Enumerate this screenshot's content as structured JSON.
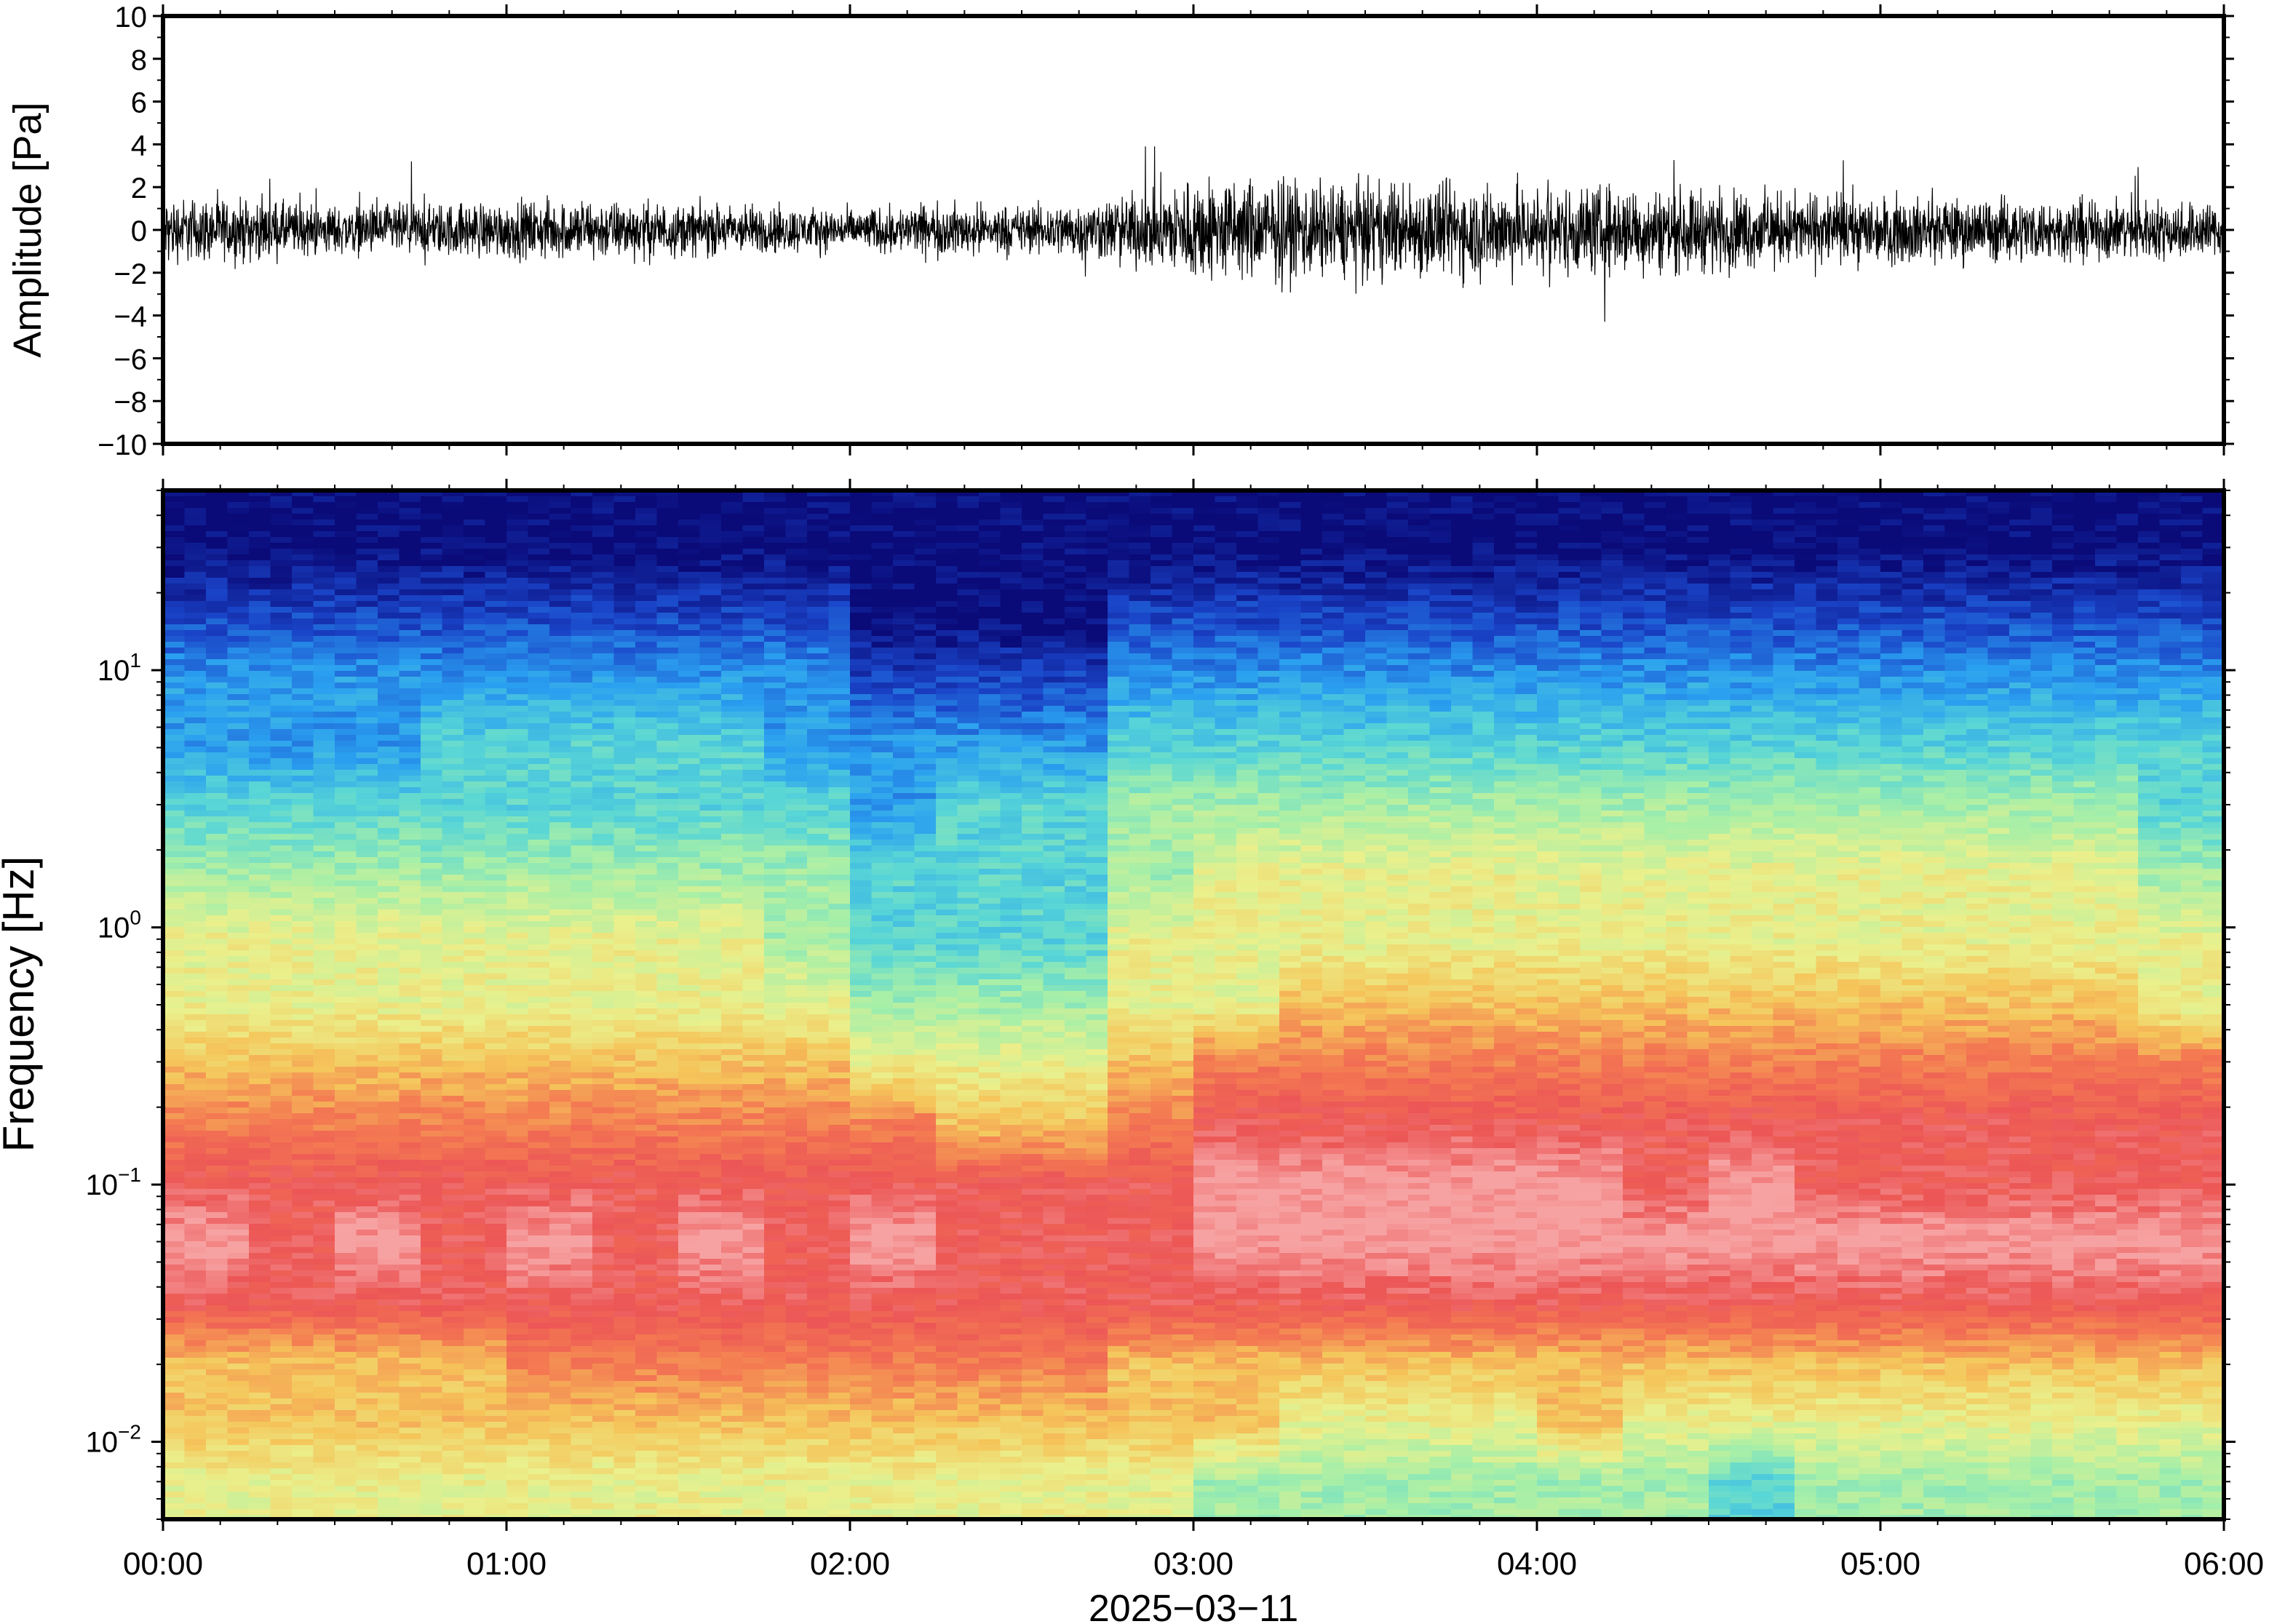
{
  "chart_data": [
    {
      "type": "line",
      "panel": "waveform",
      "ylabel": "Amplitude [Pa]",
      "ylim": [
        -10,
        10
      ],
      "yticks": [
        10,
        8,
        6,
        4,
        2,
        0,
        -2,
        -4,
        -6,
        -8,
        -10
      ],
      "ytick_labels": [
        "10",
        "8",
        "6",
        "4",
        "2",
        "0",
        "−2",
        "−4",
        "−6",
        "−8",
        "−10"
      ],
      "xlim": [
        "00:00",
        "06:00"
      ],
      "series": [
        {
          "color": "#000000",
          "x_hours": [
            0,
            0.25,
            0.5,
            0.75,
            1,
            1.25,
            1.5,
            1.75,
            2,
            2.25,
            2.5,
            2.75,
            3,
            3.25,
            3.5,
            3.75,
            4,
            4.25,
            4.5,
            4.75,
            5,
            5.25,
            5.5,
            5.75,
            6
          ],
          "envelope_pa": [
            1.6,
            1.5,
            1.2,
            1.3,
            1.4,
            1.5,
            1.3,
            1.2,
            1.0,
            1.3,
            1.2,
            1.5,
            2.6,
            2.5,
            2.3,
            2.4,
            2.2,
            2.2,
            2.0,
            1.8,
            1.7,
            1.6,
            1.5,
            1.5,
            1.4
          ],
          "peak_max_pa": 3.9,
          "peak_min_pa": -4.4
        }
      ]
    },
    {
      "type": "heatmap",
      "panel": "spectrogram",
      "ylabel": "Frequency [Hz]",
      "xlabel": "2025−03−11",
      "y_scale": "log",
      "ylim_hz": [
        0.005,
        50
      ],
      "ytick_values_hz": [
        10,
        1,
        0.1,
        0.01
      ],
      "ytick_labels": [
        {
          "base": "10",
          "exp": "1"
        },
        {
          "base": "10",
          "exp": "0"
        },
        {
          "base": "10",
          "exp": "−1"
        },
        {
          "base": "10",
          "exp": "−2"
        }
      ],
      "x_tick_labels": [
        "00:00",
        "01:00",
        "02:00",
        "03:00",
        "04:00",
        "05:00",
        "06:00"
      ],
      "colormap": "rainbow",
      "colormap_stops": [
        "#0a0a78",
        "#1a44c8",
        "#2a9ff0",
        "#58d6d6",
        "#a6efa8",
        "#eaf08c",
        "#f5c55a",
        "#f47a52",
        "#ec5656",
        "#f7a2a2"
      ],
      "time_columns_hours": [
        0,
        0.25,
        0.5,
        0.75,
        1,
        1.25,
        1.5,
        1.75,
        2,
        2.25,
        2.5,
        2.75,
        3,
        3.25,
        3.5,
        3.75,
        4,
        4.25,
        4.5,
        4.75,
        5,
        5.25,
        5.5,
        5.75
      ],
      "frequency_rows_hz": [
        0.007,
        0.012,
        0.02,
        0.035,
        0.06,
        0.1,
        0.17,
        0.3,
        0.5,
        0.9,
        1.6,
        3,
        5,
        9,
        16,
        30
      ],
      "level_index_by_column": [
        [
          5,
          5,
          5,
          5,
          5,
          5,
          5,
          5,
          5,
          5,
          5,
          5,
          4,
          4,
          4,
          4,
          4,
          4,
          3,
          4,
          4,
          4,
          4,
          4
        ],
        [
          6,
          6,
          6,
          6,
          6,
          6,
          6,
          6,
          6,
          6,
          6,
          6,
          6,
          5,
          5,
          5,
          6,
          5,
          5,
          5,
          5,
          5,
          5,
          5
        ],
        [
          6,
          6,
          6,
          6,
          7,
          7,
          7,
          7,
          7,
          7,
          7,
          6,
          6,
          6,
          6,
          6,
          6,
          6,
          6,
          6,
          6,
          6,
          6,
          6
        ],
        [
          8,
          8,
          8,
          8,
          8,
          8,
          8,
          8,
          8,
          8,
          8,
          8,
          8,
          8,
          8,
          8,
          8,
          8,
          8,
          8,
          8,
          8,
          8,
          8
        ],
        [
          9,
          8,
          9,
          8,
          9,
          8,
          9,
          8,
          9,
          8,
          8,
          8,
          9,
          9,
          9,
          9,
          9,
          9,
          9,
          9,
          9,
          9,
          9,
          9
        ],
        [
          8,
          8,
          8,
          8,
          8,
          8,
          8,
          8,
          8,
          8,
          8,
          8,
          9,
          9,
          9,
          9,
          9,
          8,
          9,
          8,
          8,
          8,
          8,
          8
        ],
        [
          7,
          7,
          7,
          7,
          7,
          7,
          7,
          7,
          7,
          6,
          6,
          7,
          8,
          8,
          8,
          8,
          8,
          8,
          8,
          8,
          8,
          8,
          8,
          8
        ],
        [
          6,
          6,
          6,
          6,
          6,
          6,
          6,
          6,
          5,
          5,
          5,
          6,
          7,
          7,
          7,
          7,
          7,
          7,
          7,
          7,
          7,
          7,
          7,
          7
        ],
        [
          5,
          5,
          5,
          5,
          5,
          5,
          5,
          5,
          4,
          4,
          4,
          5,
          5,
          6,
          6,
          6,
          6,
          6,
          6,
          6,
          6,
          6,
          6,
          5
        ],
        [
          5,
          5,
          5,
          5,
          5,
          5,
          5,
          4,
          3,
          3,
          3,
          5,
          5,
          5,
          5,
          5,
          5,
          5,
          5,
          5,
          5,
          5,
          5,
          5
        ],
        [
          4,
          4,
          4,
          4,
          4,
          4,
          4,
          4,
          3,
          3,
          3,
          4,
          5,
          5,
          5,
          5,
          5,
          5,
          5,
          5,
          5,
          5,
          5,
          4
        ],
        [
          3,
          3,
          3,
          3,
          3,
          3,
          3,
          3,
          2,
          3,
          3,
          4,
          4,
          4,
          4,
          4,
          4,
          4,
          4,
          4,
          4,
          4,
          4,
          3
        ],
        [
          2,
          2,
          2,
          3,
          3,
          3,
          3,
          2,
          2,
          2,
          2,
          3,
          3,
          3,
          3,
          3,
          3,
          3,
          3,
          3,
          3,
          3,
          3,
          3
        ],
        [
          2,
          2,
          2,
          2,
          2,
          2,
          2,
          2,
          1,
          1,
          1,
          2,
          2,
          2,
          2,
          2,
          2,
          2,
          2,
          2,
          2,
          2,
          2,
          2
        ],
        [
          1,
          1,
          1,
          1,
          1,
          1,
          1,
          1,
          0,
          0,
          0,
          1,
          1,
          1,
          1,
          1,
          1,
          1,
          1,
          1,
          1,
          1,
          1,
          1
        ],
        [
          0,
          0,
          0,
          0,
          0,
          0,
          0,
          0,
          0,
          0,
          0,
          0,
          0,
          0,
          0,
          0,
          0,
          0,
          0,
          0,
          0,
          0,
          0,
          0
        ]
      ]
    }
  ]
}
